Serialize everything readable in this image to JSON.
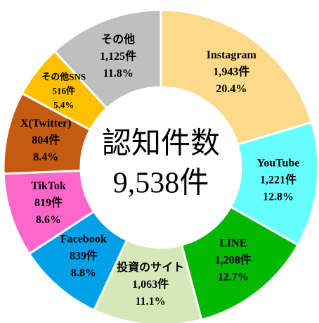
{
  "chart_data": {
    "type": "donut",
    "center_label": "認知件数",
    "total_label": "9,538件",
    "categories": [
      "Instagram",
      "YouTube",
      "LINE",
      "投資のサイト",
      "Facebook",
      "TikTok",
      "X(Twitter)",
      "その他SNS",
      "その他"
    ],
    "values": [
      1943,
      1221,
      1208,
      1063,
      839,
      819,
      804,
      516,
      1125
    ],
    "value_labels": [
      "1,943件",
      "1,221件",
      "1,208件",
      "1,063件",
      "839件",
      "819件",
      "804件",
      "516件",
      "1,125件"
    ],
    "percent_labels": [
      "20.4%",
      "12.8%",
      "12.7%",
      "11.1%",
      "8.8%",
      "8.6%",
      "8.4%",
      "5.4%",
      "11.8%"
    ],
    "colors": [
      "#FFD98A",
      "#66FFFF",
      "#00B800",
      "#D6E8B8",
      "#00A0E8",
      "#FF66CC",
      "#C55A11",
      "#FFC000",
      "#BFBFBF"
    ]
  }
}
